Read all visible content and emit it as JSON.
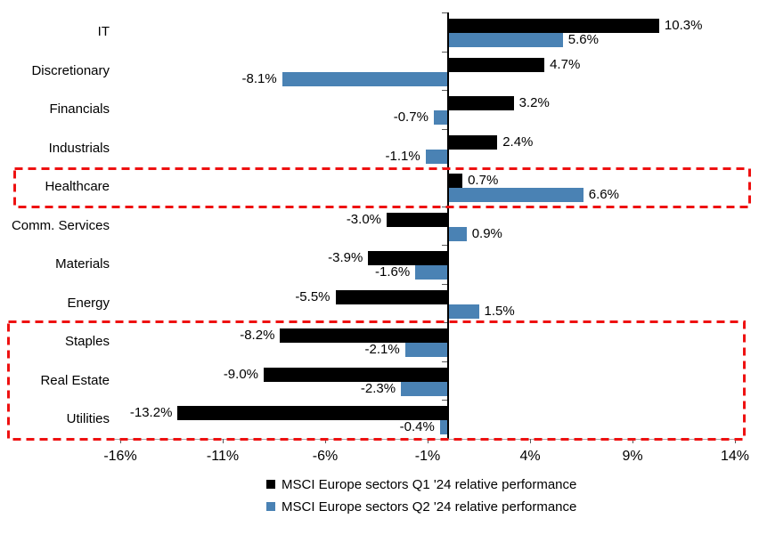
{
  "chart_data": {
    "type": "bar",
    "orientation": "horizontal",
    "title": "",
    "categories": [
      "IT",
      "Discretionary",
      "Financials",
      "Industrials",
      "Healthcare",
      "Comm. Services",
      "Materials",
      "Energy",
      "Staples",
      "Real Estate",
      "Utilities"
    ],
    "series": [
      {
        "name": "MSCI Europe sectors Q1 '24 relative performance",
        "color": "#000000",
        "values": [
          10.3,
          4.7,
          3.2,
          2.4,
          0.7,
          -3.0,
          -3.9,
          -5.5,
          -8.2,
          -9.0,
          -13.2
        ],
        "labels": [
          "10.3%",
          "4.7%",
          "3.2%",
          "2.4%",
          "0.7%",
          "-3.0%",
          "-3.9%",
          "-5.5%",
          "-8.2%",
          "-9.0%",
          "-13.2%"
        ]
      },
      {
        "name": "MSCI Europe sectors Q2 '24 relative performance",
        "color": "#4a82b4",
        "values": [
          5.6,
          -8.1,
          -0.7,
          -1.1,
          6.6,
          0.9,
          -1.6,
          1.5,
          -2.1,
          -2.3,
          -0.4
        ],
        "labels": [
          "5.6%",
          "-8.1%",
          "-0.7%",
          "-1.1%",
          "6.6%",
          "0.9%",
          "-1.6%",
          "1.5%",
          "-2.1%",
          "-2.3%",
          "-0.4%"
        ]
      }
    ],
    "x_axis": {
      "tick_labels": [
        "-16%",
        "-11%",
        "-6%",
        "-1%",
        "4%",
        "9%",
        "14%"
      ],
      "tick_values": [
        -16,
        -11,
        -6,
        -1,
        4,
        9,
        14
      ],
      "min": -17,
      "max": 15,
      "unit": "percent"
    },
    "grid": false,
    "legend": {
      "position": "bottom",
      "items": [
        {
          "label": "MSCI Europe sectors Q1 '24 relative performance",
          "color": "#000000"
        },
        {
          "label": "MSCI Europe sectors Q2 '24 relative performance",
          "color": "#4a82b4"
        }
      ]
    },
    "annotations": {
      "highlight_color": "#ee1111",
      "highlight_boxes": [
        {
          "name": "healthcare-highlight-box",
          "rows": [
            "Healthcare"
          ],
          "row_indices": [
            4
          ]
        },
        {
          "name": "defensives-highlight-box",
          "rows": [
            "Staples",
            "Real Estate",
            "Utilities"
          ],
          "row_indices": [
            8,
            9,
            10
          ]
        }
      ]
    }
  }
}
